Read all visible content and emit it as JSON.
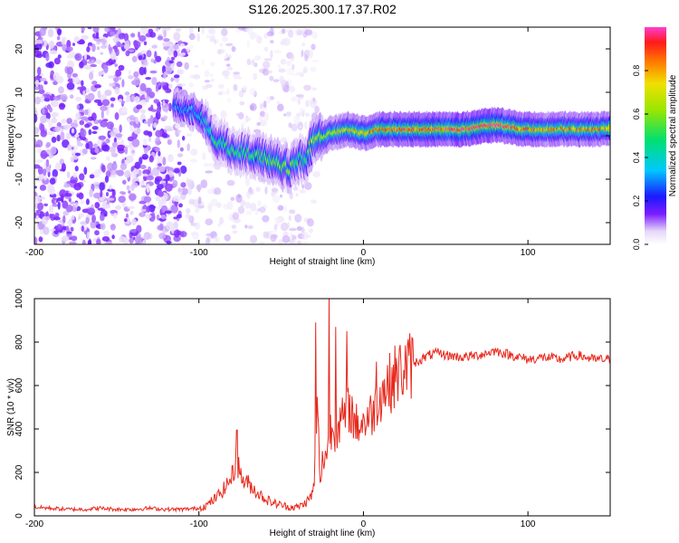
{
  "title": "S126.2025.300.17.37.R02",
  "chart_data": [
    {
      "type": "heatmap",
      "xlabel": "Height of straight line (km)",
      "ylabel": "Frequency (Hz)",
      "xlim": [
        -200,
        150
      ],
      "ylim": [
        -25,
        25
      ],
      "xticks": [
        -200,
        -100,
        0,
        100
      ],
      "yticks": [
        -20,
        -10,
        0,
        10,
        20
      ],
      "colorbar": {
        "label": "Normalized spectral amplitude",
        "range": [
          0,
          1
        ],
        "ticks": [
          "0.0",
          "0.2",
          "0.4",
          "0.6",
          "0.8"
        ]
      },
      "ridge": {
        "x": [
          -115,
          -100,
          -95,
          -90,
          -85,
          -80,
          -75,
          -70,
          -65,
          -60,
          -55,
          -50,
          -45,
          -40,
          -37,
          -35,
          -32,
          -30,
          -25,
          -20,
          -15,
          -10,
          -5,
          0,
          5,
          10,
          20,
          40,
          60,
          80,
          90,
          95,
          100,
          110,
          120,
          150
        ],
        "y": [
          7,
          5,
          2,
          -1,
          -2,
          -3,
          -3.5,
          -4,
          -4.5,
          -5,
          -5.5,
          -7,
          -7.5,
          -6,
          -5,
          -6,
          -2.5,
          -1,
          -0.5,
          0.5,
          1,
          1.5,
          1,
          0.5,
          1,
          1.5,
          1.5,
          1.5,
          1.5,
          2.5,
          2,
          1.5,
          1.5,
          1.5,
          1.5,
          1.5
        ],
        "strength": [
          0.3,
          0.35,
          0.4,
          0.5,
          0.5,
          0.5,
          0.5,
          0.5,
          0.55,
          0.55,
          0.6,
          0.6,
          0.6,
          0.55,
          0.5,
          0.55,
          0.6,
          0.65,
          0.65,
          0.7,
          0.7,
          0.75,
          0.75,
          0.8,
          0.8,
          0.85,
          0.85,
          0.9,
          0.95,
          0.95,
          0.9,
          0.85,
          0.85,
          0.8,
          0.8,
          0.8
        ]
      }
    },
    {
      "type": "line",
      "xlabel": "Height of straight line (km)",
      "ylabel": "SNR (10 * v/v)",
      "xlim": [
        -200,
        150
      ],
      "ylim": [
        0,
        1000
      ],
      "xticks": [
        -200,
        -100,
        0,
        100
      ],
      "yticks": [
        0,
        200,
        400,
        600,
        800,
        1000
      ],
      "series": [
        {
          "name": "SNR",
          "color": "#e8281c",
          "x": [
            -200,
            -190,
            -180,
            -170,
            -160,
            -150,
            -140,
            -130,
            -120,
            -110,
            -100,
            -95,
            -90,
            -85,
            -80,
            -77,
            -75,
            -73,
            -70,
            -65,
            -60,
            -55,
            -50,
            -45,
            -40,
            -35,
            -31,
            -30,
            -28,
            -26,
            -25,
            -22,
            -20,
            -18,
            -15,
            -10,
            -8,
            -5,
            0,
            5,
            8,
            10,
            15,
            20,
            25,
            30,
            35,
            40,
            45,
            50,
            60,
            70,
            80,
            90,
            100,
            110,
            120,
            130,
            140,
            150
          ],
          "y": [
            40,
            35,
            30,
            30,
            35,
            30,
            30,
            35,
            30,
            30,
            35,
            50,
            80,
            120,
            180,
            250,
            200,
            160,
            150,
            110,
            80,
            60,
            50,
            40,
            40,
            60,
            100,
            150,
            500,
            120,
            250,
            300,
            400,
            380,
            420,
            470,
            500,
            420,
            430,
            470,
            520,
            560,
            600,
            650,
            680,
            700,
            720,
            740,
            750,
            740,
            730,
            740,
            760,
            740,
            720,
            730,
            720,
            740,
            720,
            720
          ],
          "spikes": [
            {
              "x": -77,
              "y": 395
            },
            {
              "x": -29,
              "y": 890
            },
            {
              "x": -21,
              "y": 1000
            },
            {
              "x": -17,
              "y": 870
            },
            {
              "x": -10,
              "y": 850
            },
            {
              "x": 8,
              "y": 710
            }
          ]
        }
      ]
    }
  ]
}
